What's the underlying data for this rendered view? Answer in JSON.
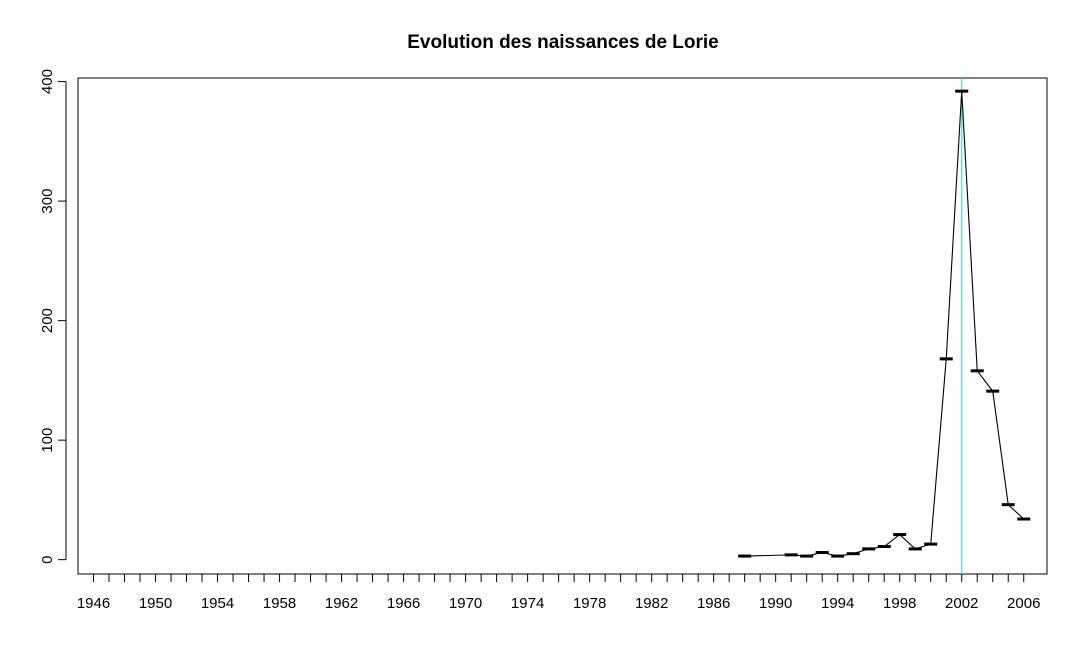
{
  "chart_data": {
    "type": "line",
    "title": "Evolution des naissances de Lorie",
    "xlabel": "",
    "ylabel": "",
    "xlim": [
      1945,
      2007.5
    ],
    "ylim": [
      -12,
      403
    ],
    "x_ticks": [
      1946,
      1947,
      1948,
      1949,
      1950,
      1951,
      1952,
      1953,
      1954,
      1955,
      1956,
      1957,
      1958,
      1959,
      1960,
      1961,
      1962,
      1963,
      1964,
      1965,
      1966,
      1967,
      1968,
      1969,
      1970,
      1971,
      1972,
      1973,
      1974,
      1975,
      1976,
      1977,
      1978,
      1979,
      1980,
      1981,
      1982,
      1983,
      1984,
      1985,
      1986,
      1987,
      1988,
      1989,
      1990,
      1991,
      1992,
      1993,
      1994,
      1995,
      1996,
      1997,
      1998,
      1999,
      2000,
      2001,
      2002,
      2003,
      2004,
      2005,
      2006
    ],
    "x_tick_labels": [
      "1946",
      "1950",
      "1954",
      "1958",
      "1962",
      "1966",
      "1970",
      "1974",
      "1978",
      "1982",
      "1986",
      "1990",
      "1994",
      "1998",
      "2002",
      "2006"
    ],
    "y_ticks": [
      0,
      100,
      200,
      300,
      400
    ],
    "y_tick_labels": [
      "0",
      "100",
      "200",
      "300",
      "400"
    ],
    "series": [
      {
        "x": [
          1988,
          1991,
          1992,
          1993,
          1994,
          1995,
          1996,
          1997,
          1998,
          1999,
          2000,
          2001,
          2002,
          2003,
          2004,
          2005,
          2006
        ],
        "y": [
          3,
          4,
          3,
          6,
          3,
          5,
          9,
          11,
          21,
          9,
          13,
          168,
          392,
          158,
          141,
          46,
          34
        ],
        "color": "#000000",
        "marker": "horizontal-bar"
      }
    ],
    "vline": {
      "x": 2002,
      "color": "#40e0d0"
    },
    "grid": false
  }
}
